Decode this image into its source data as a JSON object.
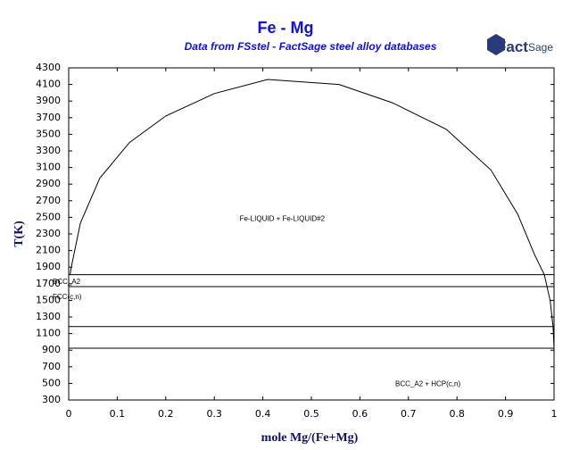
{
  "chart_data": {
    "type": "line",
    "title": "Fe - Mg",
    "subtitle": "Data from FSstel - FactSage steel alloy databases",
    "logo": [
      "Fact",
      "Sage"
    ],
    "x_label": "mole Mg/(Fe+Mg)",
    "y_label": "T(K)",
    "xlim": [
      0,
      1
    ],
    "ylim": [
      300,
      4300
    ],
    "xticks": [
      0,
      0.1,
      0.2,
      0.3,
      0.4,
      0.5,
      0.6,
      0.7,
      0.8,
      0.9,
      1
    ],
    "yticks": [
      300,
      500,
      700,
      900,
      1100,
      1300,
      1500,
      1700,
      1900,
      2100,
      2300,
      2500,
      2700,
      2900,
      3100,
      3300,
      3500,
      3700,
      3900,
      4100,
      4300
    ],
    "series": [
      {
        "color": "#000000",
        "x": [
          0.003,
          0.005,
          0.024,
          0.064,
          0.125,
          0.2,
          0.3,
          0.41,
          0.557,
          0.667,
          0.778,
          0.87,
          0.925,
          0.96,
          0.98,
          0.992,
          0.998,
          1
        ],
        "values": [
          1809,
          1890,
          2430,
          2970,
          3400,
          3720,
          3990,
          4160,
          4100,
          3880,
          3560,
          3070,
          2540,
          2050,
          1809,
          1500,
          1185,
          923
        ]
      }
    ],
    "isotherms": [
      1809,
      1665,
      1185,
      923
    ],
    "annotations": [
      {
        "text": "Fe-LIQUID + Fe-LIQUID#2",
        "x": 0.44,
        "y": 2480
      },
      {
        "text": "BCC_A2",
        "x": 0,
        "y": 1720
      },
      {
        "text": "FCC(c,n)",
        "x": 0,
        "y": 1540
      },
      {
        "text": "BCC_A2 + HCP(c,n)",
        "x": 0.74,
        "y": 490
      }
    ]
  }
}
